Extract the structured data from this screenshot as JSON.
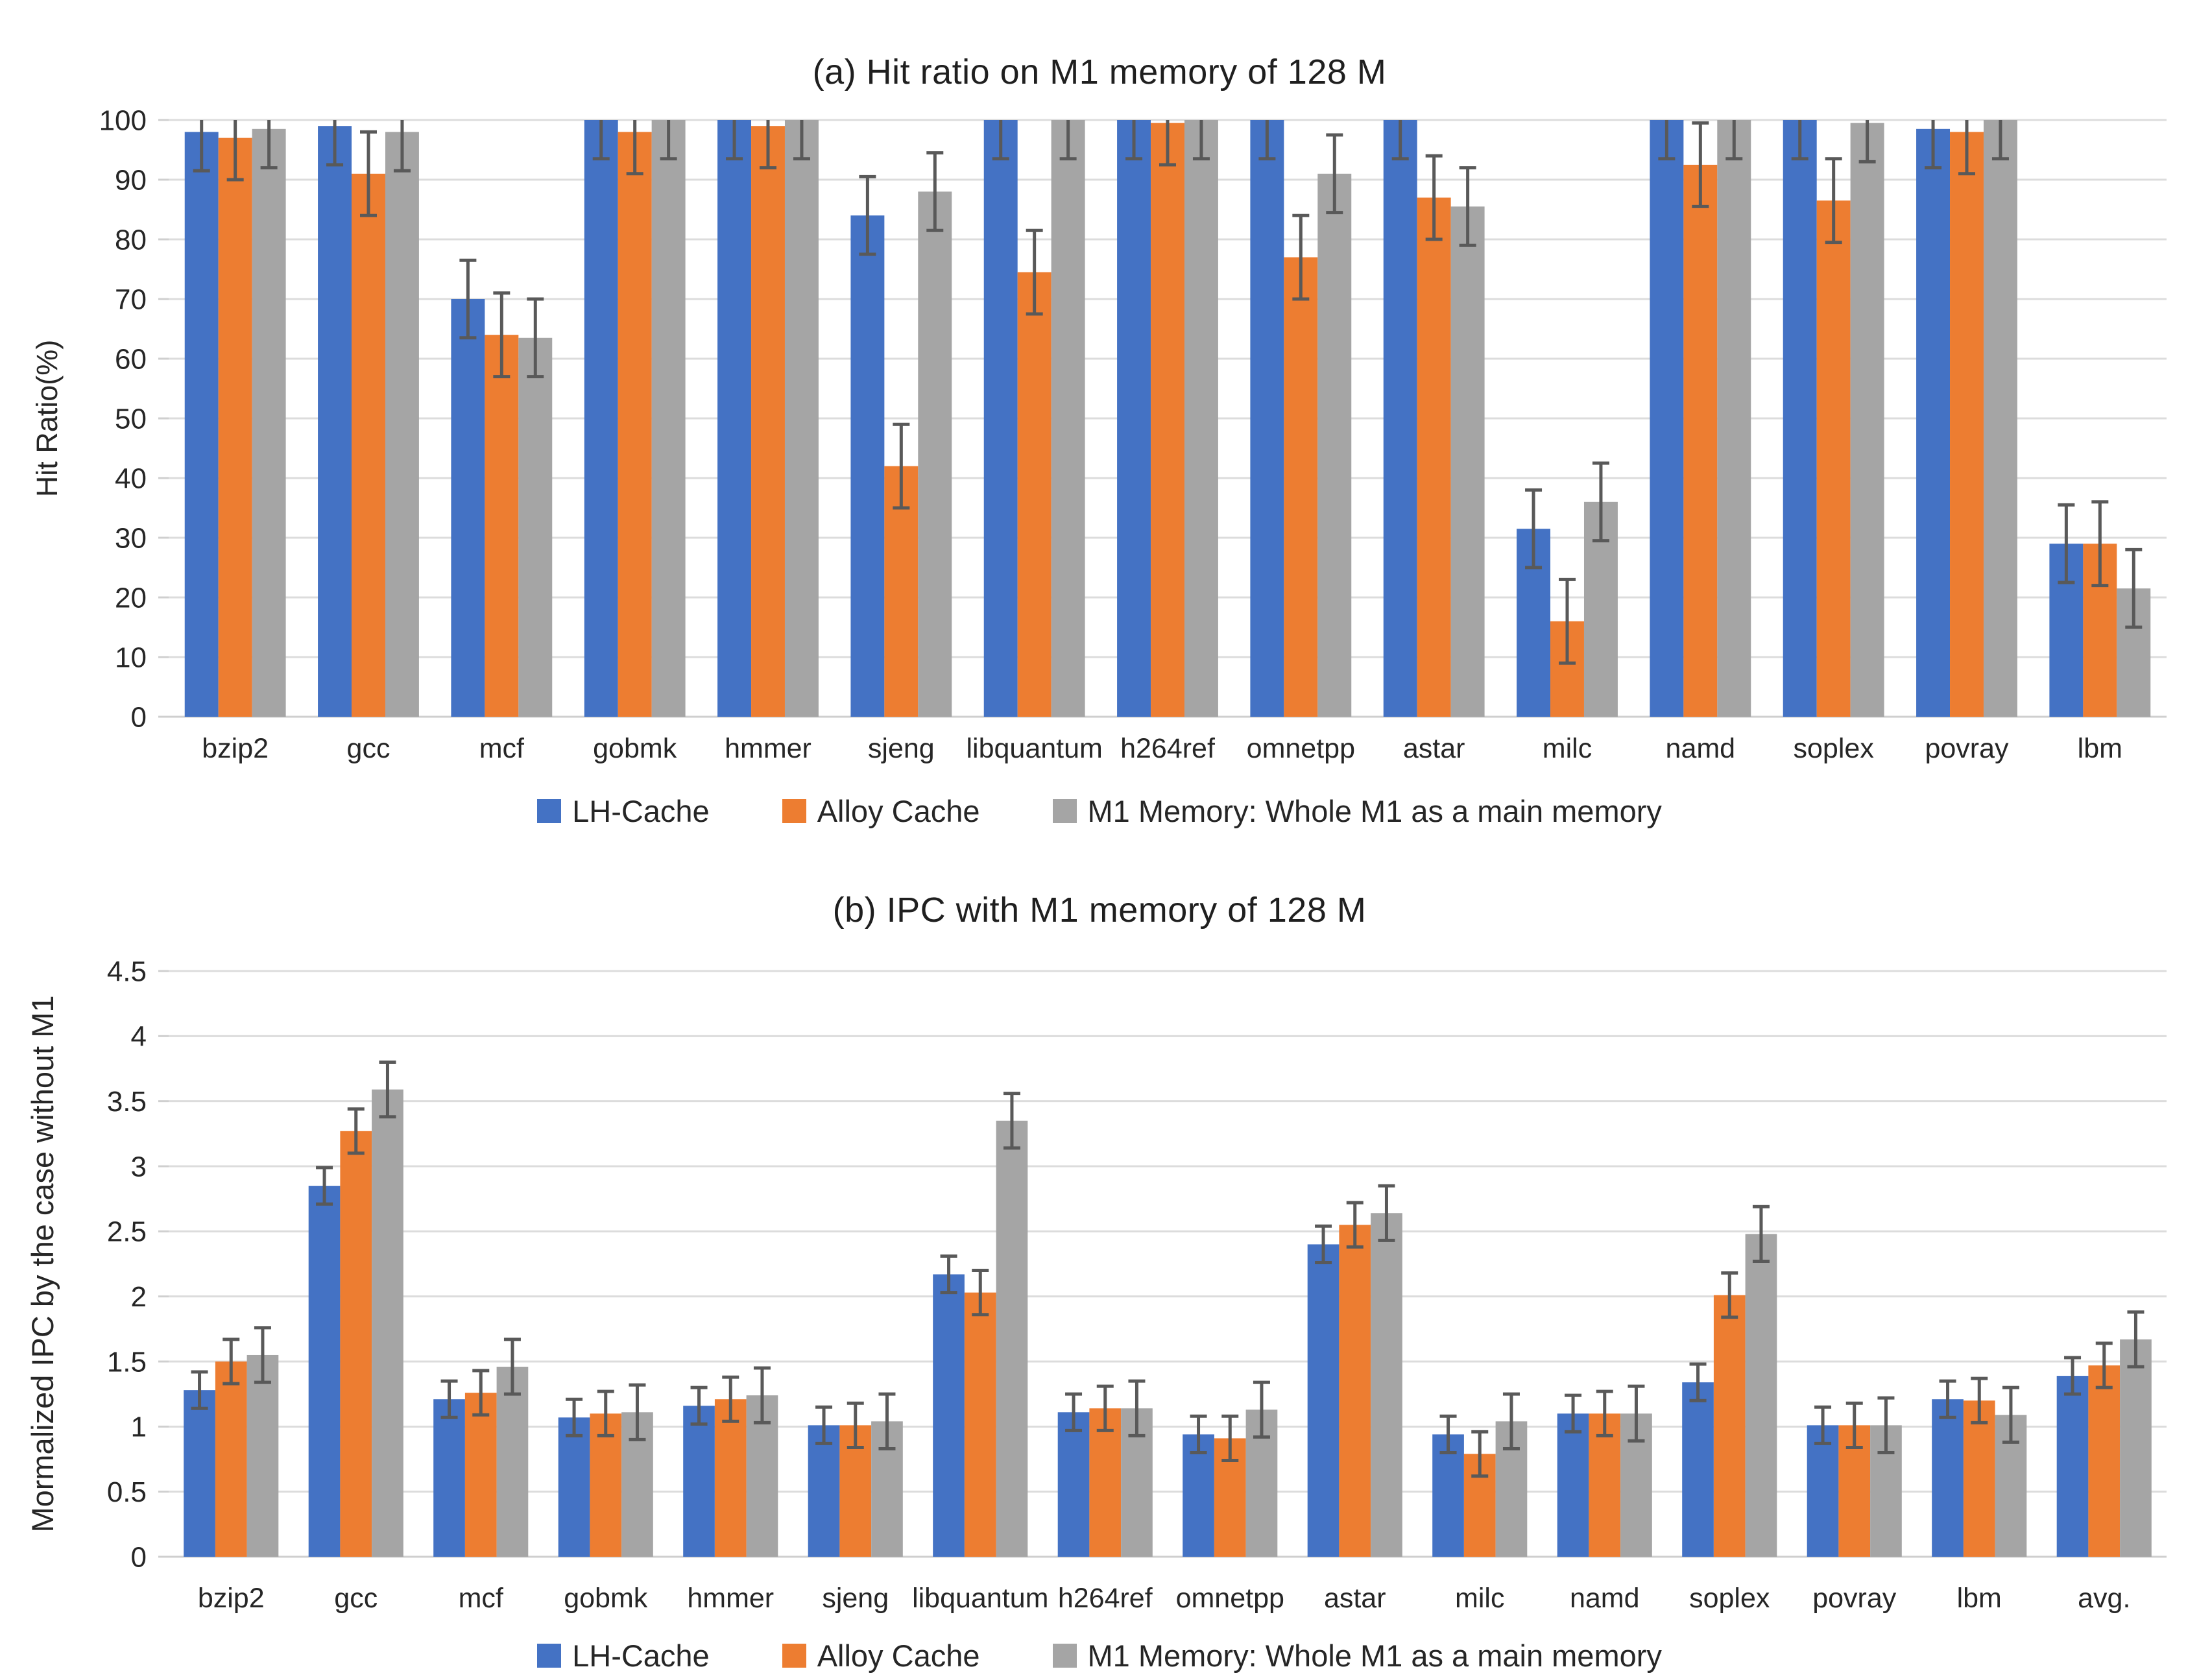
{
  "figure": {
    "background": "#FFFFFF",
    "titles": {
      "chart_a": "(a) Hit ratio on M1 memory of 128 M",
      "chart_b": "(b) IPC with M1 memory of 128 M"
    }
  },
  "style": {
    "bar_blue": "#4472C4",
    "bar_orange": "#ED7D31",
    "bar_gray": "#A5A5A5",
    "error_bar_color": "#595959",
    "grid_color": "#DCDCDC",
    "axis_color": "#CFCFCF",
    "text_color": "#262626"
  },
  "chart_data": [
    {
      "id": "hit_ratio",
      "type": "bar",
      "title": "(a) Hit ratio on M1 memory of 128 M",
      "xlabel": "",
      "ylabel": "Hit Ratio(%)",
      "ylim": [
        0,
        100
      ],
      "ytick_step": 10,
      "yticks": [
        0,
        10,
        20,
        30,
        40,
        50,
        60,
        70,
        80,
        90,
        100
      ],
      "grid": true,
      "error_bars": true,
      "legend_position": "bottom",
      "categories": [
        "bzip2",
        "gcc",
        "mcf",
        "gobmk",
        "hmmer",
        "sjeng",
        "libquantum",
        "h264ref",
        "omnetpp",
        "astar",
        "milc",
        "namd",
        "soplex",
        "povray",
        "lbm"
      ],
      "series": [
        {
          "name": "LH-Cache",
          "color": "#4472C4",
          "values": [
            98,
            99,
            70,
            100,
            100,
            84,
            100,
            100,
            100,
            100,
            31.5,
            100,
            100,
            98.5,
            29
          ],
          "errors": [
            6.5,
            6.5,
            6.5,
            6.5,
            6.5,
            6.5,
            6.5,
            6.5,
            6.5,
            6.5,
            6.5,
            6.5,
            6.5,
            6.5,
            6.5
          ]
        },
        {
          "name": "Alloy Cache",
          "color": "#ED7D31",
          "values": [
            97,
            91,
            64,
            98,
            99,
            42,
            74.5,
            99.5,
            77,
            87,
            16,
            92.5,
            86.5,
            98,
            29
          ],
          "errors": [
            7,
            7,
            7,
            7,
            7,
            7,
            7,
            7,
            7,
            7,
            7,
            7,
            7,
            7,
            7
          ]
        },
        {
          "name": "M1 Memory: Whole M1 as a main memory",
          "color": "#A5A5A5",
          "values": [
            98.5,
            98,
            63.5,
            100,
            100,
            88,
            100,
            100,
            91,
            85.5,
            36,
            100,
            99.5,
            100,
            21.5
          ],
          "errors": [
            6.5,
            6.5,
            6.5,
            6.5,
            6.5,
            6.5,
            6.5,
            6.5,
            6.5,
            6.5,
            6.5,
            6.5,
            6.5,
            6.5,
            6.5
          ]
        }
      ]
    },
    {
      "id": "ipc",
      "type": "bar",
      "title": "(b) IPC with M1 memory of 128 M",
      "xlabel": "",
      "ylabel": "Mormalized IPC by the case without M1",
      "ylim": [
        0,
        4.5
      ],
      "ytick_step": 0.5,
      "yticks": [
        0,
        0.5,
        1,
        1.5,
        2,
        2.5,
        3,
        3.5,
        4,
        4.5
      ],
      "grid": true,
      "error_bars": true,
      "legend_position": "bottom",
      "categories": [
        "bzip2",
        "gcc",
        "mcf",
        "gobmk",
        "hmmer",
        "sjeng",
        "libquantum",
        "h264ref",
        "omnetpp",
        "astar",
        "milc",
        "namd",
        "soplex",
        "povray",
        "lbm",
        "avg."
      ],
      "series": [
        {
          "name": "LH-Cache",
          "color": "#4472C4",
          "values": [
            1.28,
            2.85,
            1.21,
            1.07,
            1.16,
            1.01,
            2.17,
            1.11,
            0.94,
            2.4,
            0.94,
            1.1,
            1.34,
            1.01,
            1.21,
            1.39
          ],
          "errors": [
            0.14,
            0.14,
            0.14,
            0.14,
            0.14,
            0.14,
            0.14,
            0.14,
            0.14,
            0.14,
            0.14,
            0.14,
            0.14,
            0.14,
            0.14,
            0.14
          ]
        },
        {
          "name": "Alloy Cache",
          "color": "#ED7D31",
          "values": [
            1.5,
            3.27,
            1.26,
            1.1,
            1.21,
            1.01,
            2.03,
            1.14,
            0.91,
            2.55,
            0.79,
            1.1,
            2.01,
            1.01,
            1.2,
            1.47
          ],
          "errors": [
            0.17,
            0.17,
            0.17,
            0.17,
            0.17,
            0.17,
            0.17,
            0.17,
            0.17,
            0.17,
            0.17,
            0.17,
            0.17,
            0.17,
            0.17,
            0.17
          ]
        },
        {
          "name": "M1 Memory: Whole M1 as a main memory",
          "color": "#A5A5A5",
          "values": [
            1.55,
            3.59,
            1.46,
            1.11,
            1.24,
            1.04,
            3.35,
            1.14,
            1.13,
            2.64,
            1.04,
            1.1,
            2.48,
            1.01,
            1.09,
            1.67
          ],
          "errors": [
            0.21,
            0.21,
            0.21,
            0.21,
            0.21,
            0.21,
            0.21,
            0.21,
            0.21,
            0.21,
            0.21,
            0.21,
            0.21,
            0.21,
            0.21,
            0.21
          ]
        }
      ]
    }
  ]
}
